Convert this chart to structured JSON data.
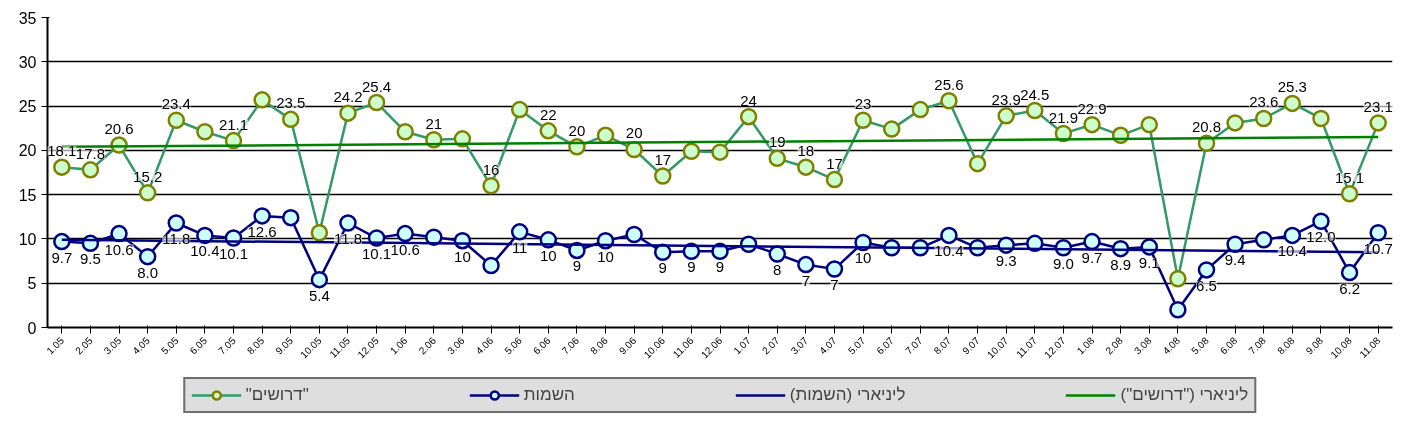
{
  "chart_data": {
    "type": "line",
    "categories": [
      "1.05",
      "2.05",
      "3.05",
      "4.05",
      "5.05",
      "6.05",
      "7.05",
      "8.05",
      "9.05",
      "10.05",
      "11.05",
      "12.05",
      "1.06",
      "2.06",
      "3.06",
      "4.06",
      "5.06",
      "6.06",
      "7.06",
      "8.06",
      "9.06",
      "10.06",
      "11.06",
      "12.06",
      "1.07",
      "2.07",
      "3.07",
      "4.07",
      "5.07",
      "6.07",
      "7.07",
      "8.07",
      "9.07",
      "10.07",
      "11.07",
      "12.07",
      "1.08",
      "2.08",
      "3.08",
      "4.08",
      "5.08",
      "6.08",
      "7.08",
      "8.08",
      "9.08",
      "10.08",
      "11.08"
    ],
    "series": [
      {
        "name": "\"דרושים\"",
        "color": "#339966",
        "values": [
          18.1,
          17.8,
          20.6,
          15.2,
          23.4,
          22.1,
          21.1,
          25.7,
          23.5,
          10.7,
          24.2,
          25.4,
          22.1,
          21.2,
          21.3,
          16.0,
          24.6,
          22.2,
          20.4,
          21.7,
          20.1,
          17.1,
          19.9,
          19.8,
          23.8,
          19.1,
          18.1,
          16.7,
          23.4,
          22.4,
          24.6,
          25.6,
          18.5,
          23.9,
          24.5,
          21.9,
          22.9,
          21.7,
          22.9,
          5.5,
          20.8,
          23.1,
          23.6,
          25.3,
          23.6,
          15.1,
          23.1
        ],
        "value_labels": [
          "18.1",
          "17.8",
          "20.6",
          "15.2",
          "23.4",
          null,
          "21.1",
          null,
          "23.5",
          null,
          "24.2",
          "25.4",
          null,
          "21",
          null,
          "16",
          null,
          "22",
          "20",
          null,
          "20",
          "17",
          null,
          null,
          "24",
          "19",
          "18",
          "17",
          "23",
          null,
          null,
          "25.6",
          null,
          "23.9",
          "24.5",
          "21.9",
          "22.9",
          null,
          null,
          null,
          "20.8",
          null,
          "23.6",
          "25.3",
          null,
          "15.1",
          "23.1"
        ]
      },
      {
        "name": "השמות",
        "color": "#000080",
        "values": [
          9.7,
          9.5,
          10.6,
          8.0,
          11.8,
          10.4,
          10.1,
          12.6,
          12.4,
          5.4,
          11.8,
          10.1,
          10.6,
          10.2,
          9.8,
          7.0,
          10.8,
          9.9,
          8.7,
          9.8,
          10.5,
          8.5,
          8.6,
          8.6,
          9.4,
          8.3,
          7.1,
          6.6,
          9.6,
          9.0,
          9.0,
          10.4,
          9.0,
          9.3,
          9.5,
          9.0,
          9.7,
          8.9,
          9.1,
          2.0,
          6.5,
          9.4,
          9.9,
          10.4,
          12.0,
          6.2,
          10.7
        ],
        "value_labels": [
          "9.7",
          "9.5",
          "10.6",
          "8.0",
          "11.8",
          "10.4",
          "10.1",
          "12.6",
          null,
          "5.4",
          "11.8",
          "10.1",
          "10.6",
          null,
          "10",
          null,
          "11",
          "10",
          "9",
          "10",
          null,
          "9",
          "9",
          "9",
          null,
          "8",
          "7",
          "7",
          "10",
          null,
          null,
          "10.4",
          null,
          "9.3",
          null,
          "9.0",
          "9.7",
          "8.9",
          "9.1",
          null,
          "6.5",
          "9.4",
          null,
          "10.4",
          "12.0",
          "6.2",
          "10.7"
        ]
      },
      {
        "name": "ליניארי (השמות)",
        "color": "#000080",
        "marker": "none",
        "x": [
          "1.05",
          "11.08"
        ],
        "values": [
          9.9,
          8.5
        ]
      },
      {
        "name": "ליניארי (\"דרושים\")",
        "color": "#008000",
        "marker": "none",
        "x": [
          "1.05",
          "11.08"
        ],
        "values": [
          20.4,
          21.5
        ]
      }
    ],
    "ylim": [
      0,
      35
    ],
    "yticks": [
      0,
      5,
      10,
      15,
      20,
      25,
      30,
      35
    ],
    "grid": "y",
    "legend": "bottom",
    "marker": "circle",
    "line_style": "solid"
  }
}
